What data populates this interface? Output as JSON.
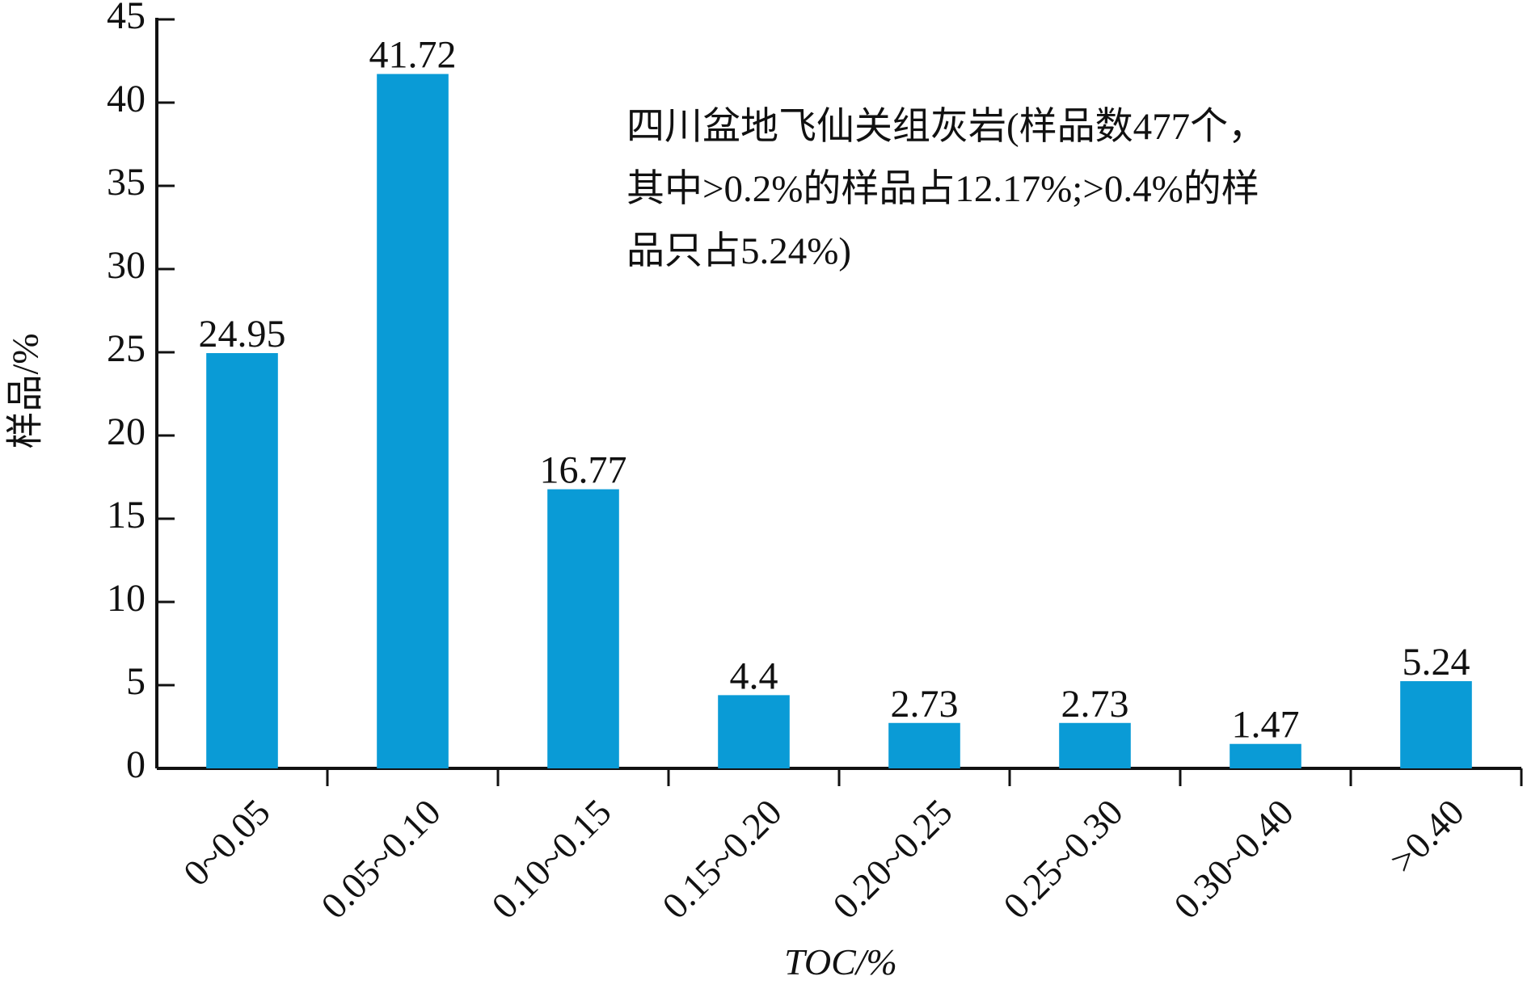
{
  "chart_data": {
    "type": "bar",
    "y_label": "样品/%",
    "x_label": "TOC/%",
    "annotation": [
      "四川盆地飞仙关组灰岩(样品数477个，",
      "其中>0.2%的样品占12.17%;>0.4%的样",
      "品只占5.24%)"
    ],
    "categories": [
      "0~0.05",
      "0.05~0.10",
      "0.10~0.15",
      "0.15~0.20",
      "0.20~0.25",
      "0.25~0.30",
      "0.30~0.40",
      ">0.40"
    ],
    "values": [
      24.95,
      41.72,
      16.77,
      4.4,
      2.73,
      2.73,
      1.47,
      5.24
    ],
    "color": "#0a9bd6",
    "ylim": [
      0,
      45
    ],
    "yticks": [
      0,
      5,
      10,
      15,
      20,
      25,
      30,
      35,
      40,
      45
    ],
    "grid": false
  }
}
